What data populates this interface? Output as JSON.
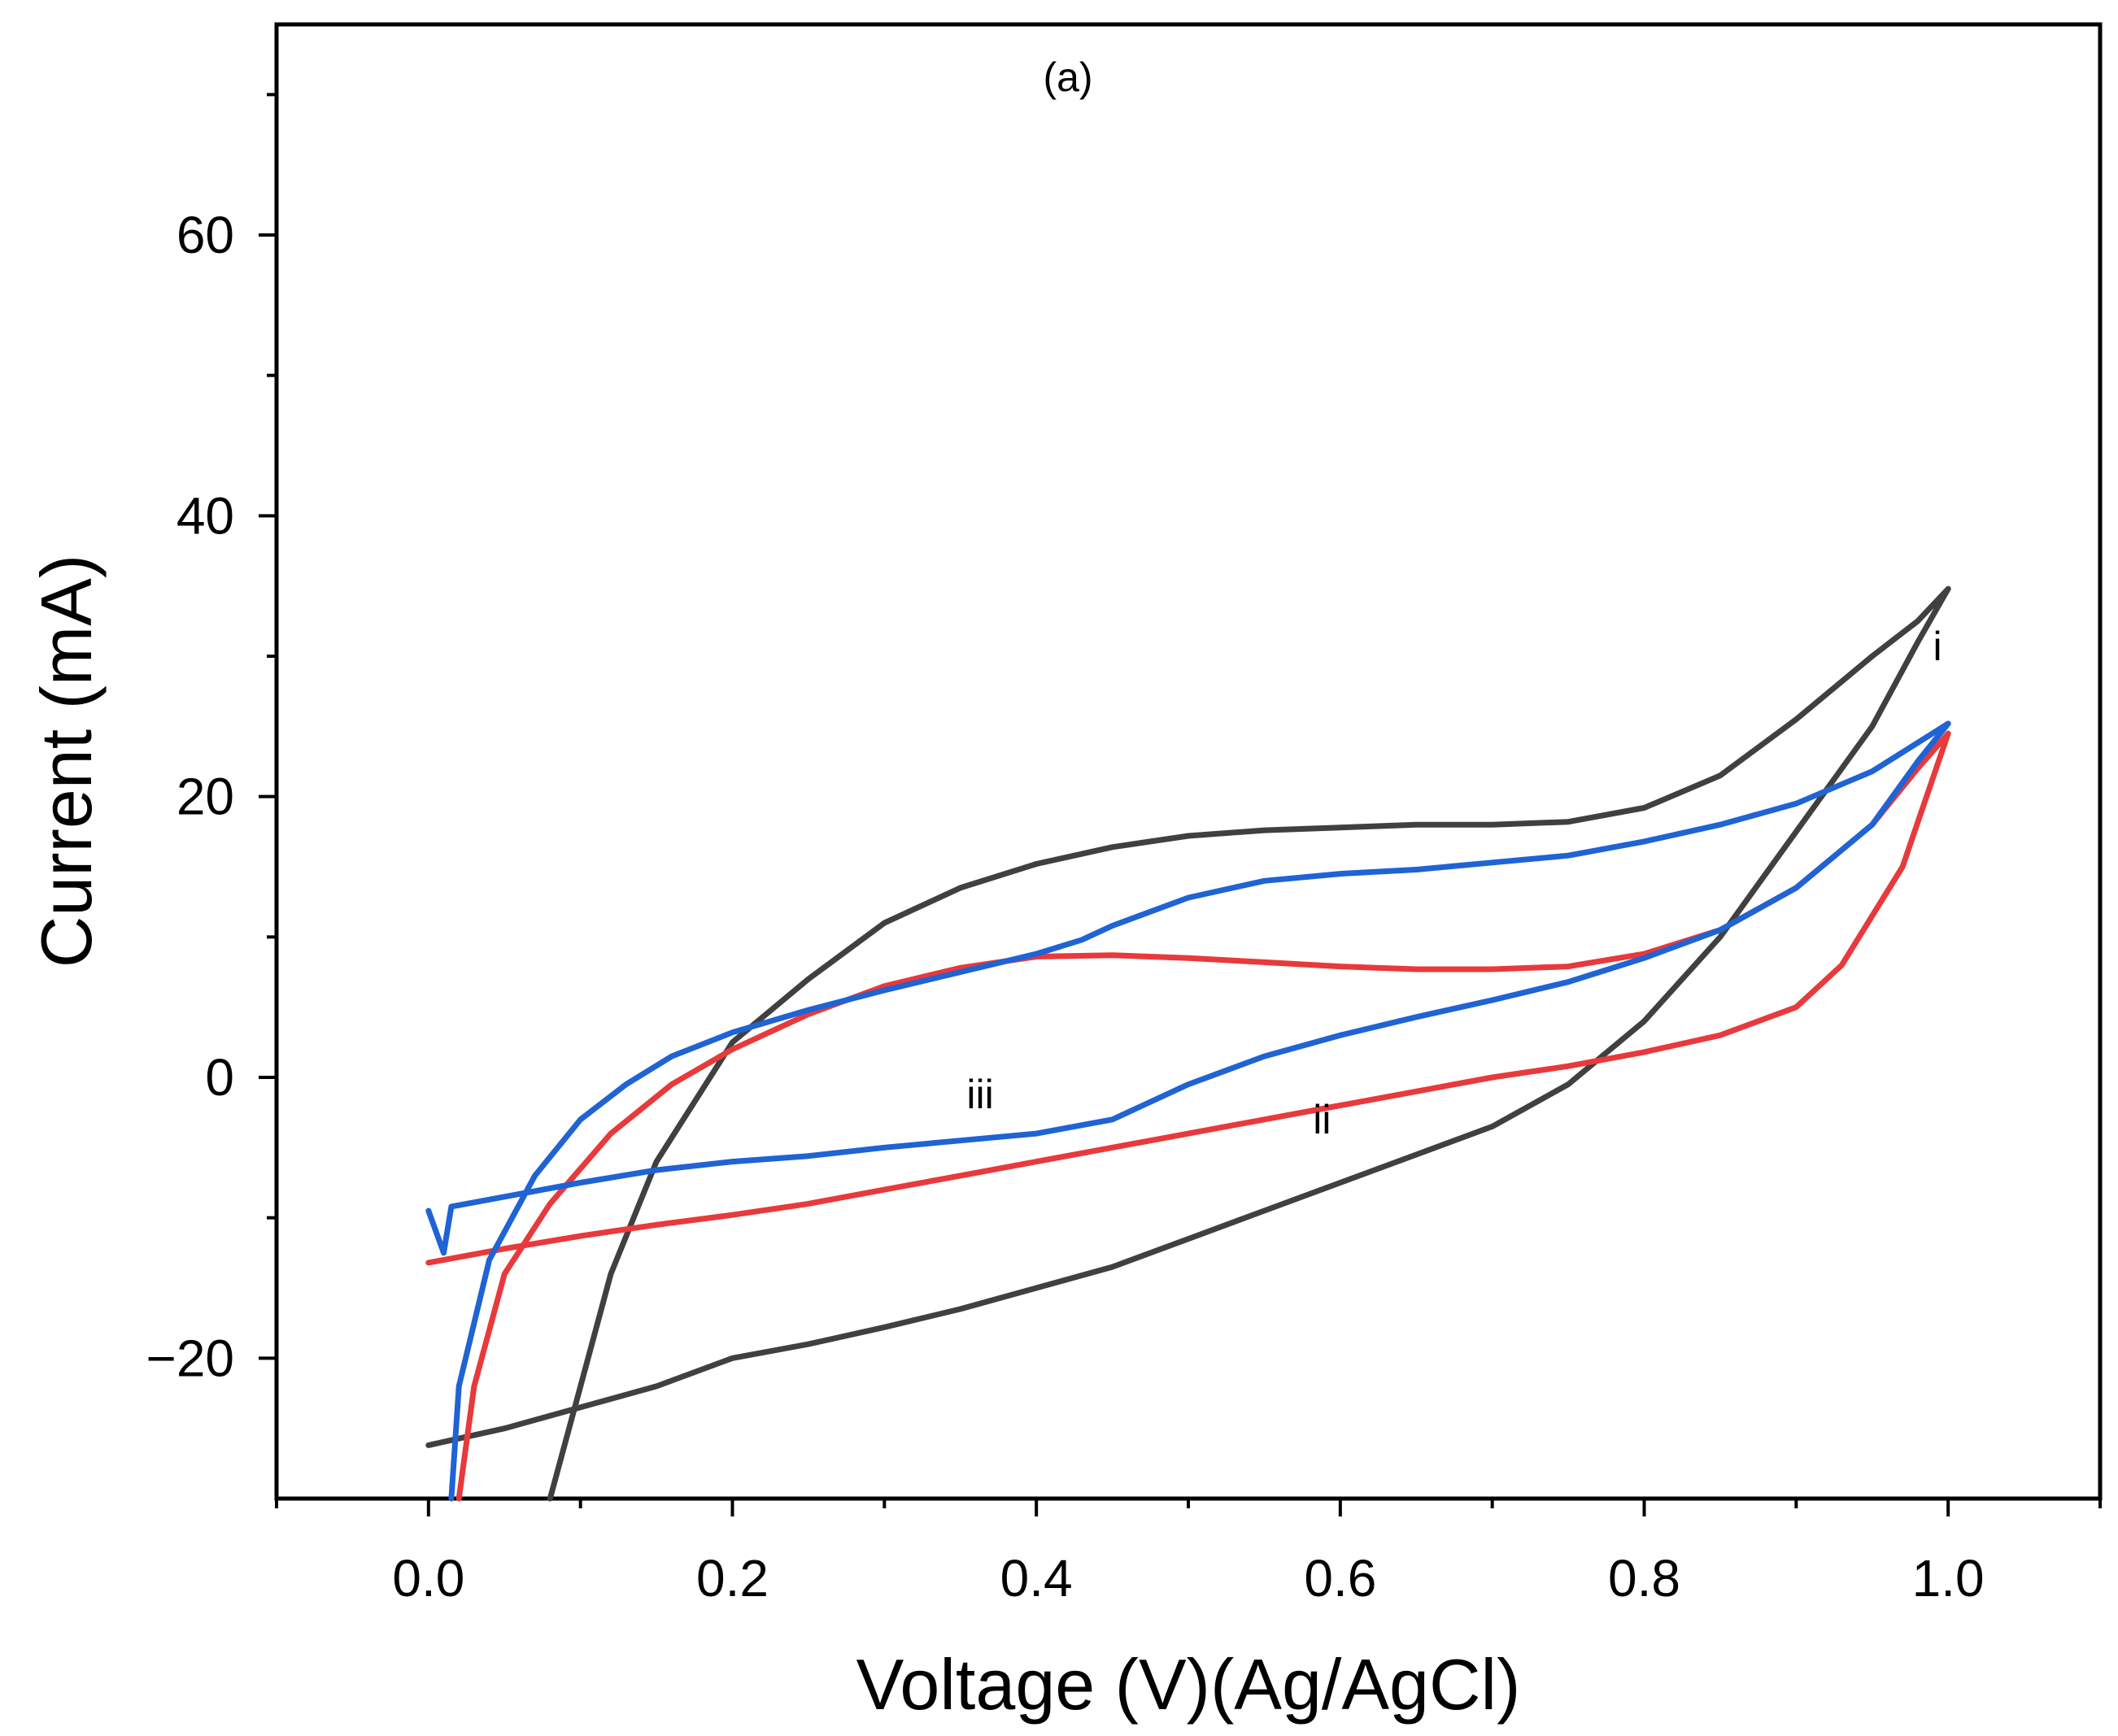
{
  "chart_data": {
    "type": "line",
    "title": "",
    "panel_label": "(a)",
    "xlabel": "Voltage (V)(Ag/AgCl)",
    "ylabel": "Current (mA)",
    "xlim": [
      -0.1,
      1.1
    ],
    "ylim": [
      -30,
      75
    ],
    "x_ticks": [
      0.0,
      0.2,
      0.4,
      0.6,
      0.8,
      1.0
    ],
    "x_tick_labels": [
      "0.0",
      "0.2",
      "0.4",
      "0.6",
      "0.8",
      "1.0"
    ],
    "x_minor_ticks": [
      -0.1,
      0.1,
      0.3,
      0.5,
      0.7,
      0.9,
      1.1
    ],
    "y_ticks": [
      -20,
      0,
      20,
      40,
      60
    ],
    "y_tick_labels": [
      "−20",
      "0",
      "20",
      "40",
      "60"
    ],
    "y_minor_ticks": [
      -10,
      10,
      30,
      50,
      70
    ],
    "grid": false,
    "series": [
      {
        "name": "i",
        "color": "#404040",
        "x": [
          0.08,
          0.1,
          0.12,
          0.15,
          0.2,
          0.25,
          0.3,
          0.35,
          0.4,
          0.45,
          0.5,
          0.55,
          0.6,
          0.65,
          0.7,
          0.75,
          0.8,
          0.85,
          0.9,
          0.95,
          0.98,
          1.0,
          0.98,
          0.95,
          0.9,
          0.85,
          0.8,
          0.75,
          0.7,
          0.65,
          0.6,
          0.55,
          0.5,
          0.45,
          0.4,
          0.35,
          0.3,
          0.25,
          0.2,
          0.15,
          0.1,
          0.05,
          0.0
        ],
        "y": [
          -30,
          -22,
          -14,
          -6,
          2.5,
          7,
          11,
          13.5,
          15.2,
          16.4,
          17.2,
          17.6,
          17.8,
          18,
          18,
          18.2,
          19.2,
          21.5,
          25.5,
          30,
          32.5,
          34.8,
          31,
          25,
          17.5,
          10,
          4,
          -0.5,
          -3.5,
          -5.5,
          -7.5,
          -9.5,
          -11.5,
          -13.5,
          -15,
          -16.5,
          -17.8,
          -19,
          -20,
          -22,
          -23.5,
          -25,
          -26.2
        ]
      },
      {
        "name": "ii",
        "color": "#e8393c",
        "x": [
          0.02,
          0.03,
          0.05,
          0.08,
          0.12,
          0.16,
          0.2,
          0.25,
          0.3,
          0.35,
          0.4,
          0.45,
          0.5,
          0.55,
          0.6,
          0.65,
          0.7,
          0.75,
          0.8,
          0.85,
          0.9,
          0.95,
          0.98,
          1.0,
          0.97,
          0.93,
          0.9,
          0.85,
          0.8,
          0.75,
          0.7,
          0.65,
          0.6,
          0.55,
          0.5,
          0.45,
          0.4,
          0.35,
          0.3,
          0.25,
          0.2,
          0.15,
          0.1,
          0.05,
          0.0
        ],
        "y": [
          -30,
          -22,
          -14,
          -9,
          -4,
          -0.5,
          2,
          4.5,
          6.5,
          7.8,
          8.6,
          8.7,
          8.5,
          8.2,
          7.9,
          7.7,
          7.7,
          7.9,
          8.8,
          10.5,
          13.5,
          18,
          22,
          24.5,
          15,
          8,
          5,
          3,
          1.8,
          0.8,
          0,
          -1,
          -2,
          -3,
          -4,
          -5,
          -6,
          -7,
          -8,
          -9,
          -9.8,
          -10.5,
          -11.3,
          -12.2,
          -13.2
        ]
      },
      {
        "name": "iii",
        "color": "#1f63d4",
        "x": [
          0.015,
          0.02,
          0.04,
          0.07,
          0.1,
          0.13,
          0.16,
          0.2,
          0.25,
          0.3,
          0.35,
          0.4,
          0.43,
          0.45,
          0.5,
          0.55,
          0.6,
          0.65,
          0.7,
          0.75,
          0.8,
          0.85,
          0.9,
          0.95,
          1.0,
          0.98,
          0.95,
          0.9,
          0.85,
          0.8,
          0.75,
          0.7,
          0.65,
          0.6,
          0.55,
          0.5,
          0.45,
          0.4,
          0.35,
          0.3,
          0.25,
          0.2,
          0.15,
          0.1,
          0.05,
          0.015,
          0.01,
          0.0
        ],
        "y": [
          -30,
          -22,
          -13,
          -7,
          -3,
          -0.5,
          1.5,
          3.2,
          4.8,
          6.2,
          7.5,
          8.8,
          9.8,
          10.8,
          12.8,
          14,
          14.5,
          14.8,
          15.3,
          15.8,
          16.8,
          18,
          19.5,
          21.8,
          25.2,
          22.5,
          18,
          13.5,
          10.5,
          8.5,
          6.8,
          5.5,
          4.3,
          3,
          1.5,
          -0.5,
          -3,
          -4,
          -4.5,
          -5,
          -5.6,
          -6,
          -6.6,
          -7.5,
          -8.5,
          -9.2,
          -12.5,
          -9.5
        ]
      }
    ],
    "annotations": [
      {
        "text": "i",
        "x": 0.993,
        "y": 29.7
      },
      {
        "text": "ii",
        "x": 0.588,
        "y": -4.0
      },
      {
        "text": "iii",
        "x": 0.363,
        "y": -2.2
      }
    ]
  }
}
